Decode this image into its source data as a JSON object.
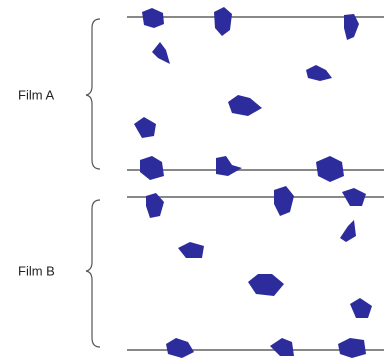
{
  "films": [
    {
      "label": "Film A"
    },
    {
      "label": "Film B"
    }
  ]
}
